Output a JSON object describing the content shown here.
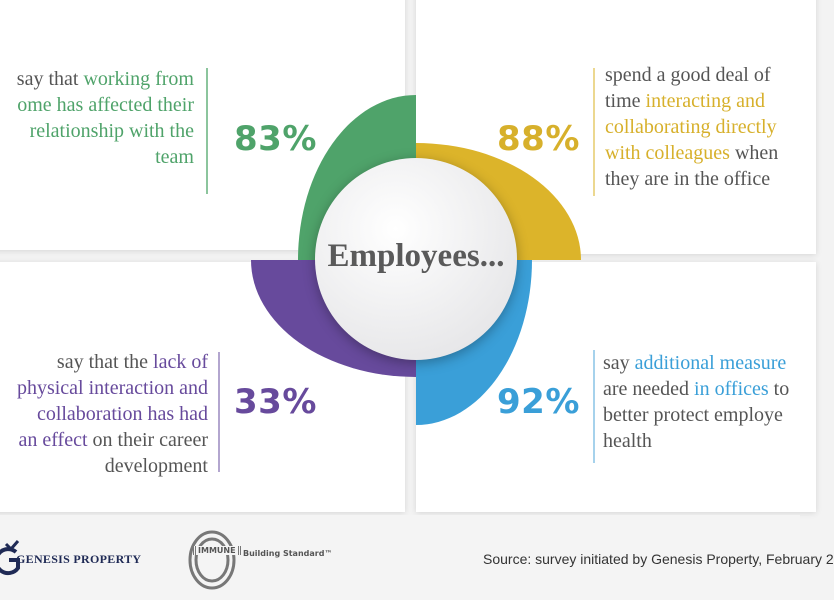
{
  "center_label": "Employees...",
  "colors": {
    "green": "#4fa36a",
    "yellow": "#d7b02b",
    "purple": "#674a9c",
    "blue": "#3a9fd8",
    "text": "#555555"
  },
  "stats": {
    "relationship": {
      "percent": "83%",
      "lines": [
        [
          "say that ",
          "working from"
        ],
        [
          "",
          "ome has affected their"
        ],
        [
          "",
          "relationship with the"
        ],
        [
          "",
          "team"
        ]
      ]
    },
    "collaborating": {
      "percent": "88%",
      "lines": [
        [
          "spend a good deal of",
          "",
          ""
        ],
        [
          "time ",
          "interacting and",
          ""
        ],
        [
          "",
          "collaborating directly",
          ""
        ],
        [
          "",
          "with colleagues",
          " when"
        ],
        [
          "they are in the office",
          "",
          ""
        ]
      ]
    },
    "career": {
      "percent": "33%",
      "lines": [
        [
          "say that the ",
          "lack of",
          ""
        ],
        [
          "",
          "physical interaction and",
          ""
        ],
        [
          "",
          "collaboration has had",
          ""
        ],
        [
          "",
          "an effect",
          " on their career"
        ],
        [
          "development",
          "",
          ""
        ]
      ]
    },
    "measures": {
      "percent": "92%",
      "lines": [
        [
          "say ",
          "additional measure",
          ""
        ],
        [
          "are needed ",
          "in offices",
          " to"
        ],
        [
          "better protect employe",
          "",
          ""
        ],
        [
          "health",
          "",
          ""
        ]
      ]
    }
  },
  "footer": {
    "genesis_logo": "GENESIS PROPERTY",
    "immune_logo": {
      "badge": "IMMUNE",
      "text": "Building Standard™"
    },
    "source": "Source: survey initiated by Genesis Property, February 2"
  }
}
